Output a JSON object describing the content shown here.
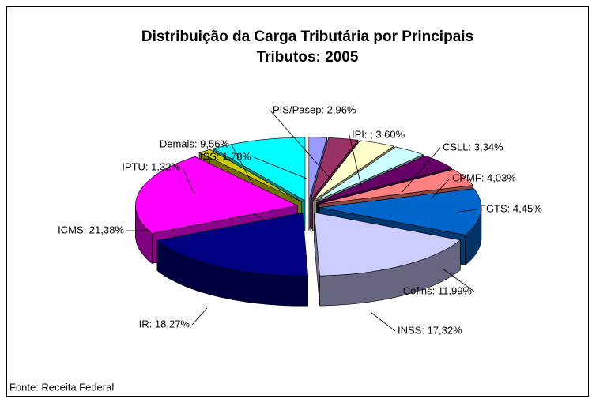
{
  "chart_data": {
    "type": "pie3d",
    "title": [
      "Distribuição da Carga Tributária por Principais",
      "Tributos: 2005"
    ],
    "values": [
      1.78,
      2.96,
      3.6,
      3.34,
      4.03,
      4.45,
      11.99,
      17.32,
      18.27,
      21.38,
      1.32,
      9.56
    ],
    "value_labels": [
      "ISS: 1,78%",
      "PIS/Pasep: 2,96%",
      "IPI: ; 3,60%",
      "CSLL: 3,34%",
      "CPMF: 4,03%",
      "FGTS: 4,45%",
      "Cofins: 11,99%",
      "INSS: 17,32%",
      "IR: 18,27%",
      "ICMS: 21,38%",
      "IPTU: 1,32%",
      "Demais: 9,56%"
    ],
    "colors": [
      "#9999ff",
      "#993366",
      "#ffffcc",
      "#ccffff",
      "#660066",
      "#ff8080",
      "#0066cc",
      "#ccccff",
      "#000080",
      "#ff00ff",
      "#cccc00",
      "#00ffff"
    ],
    "source": "Fonte: Receita Federal"
  }
}
